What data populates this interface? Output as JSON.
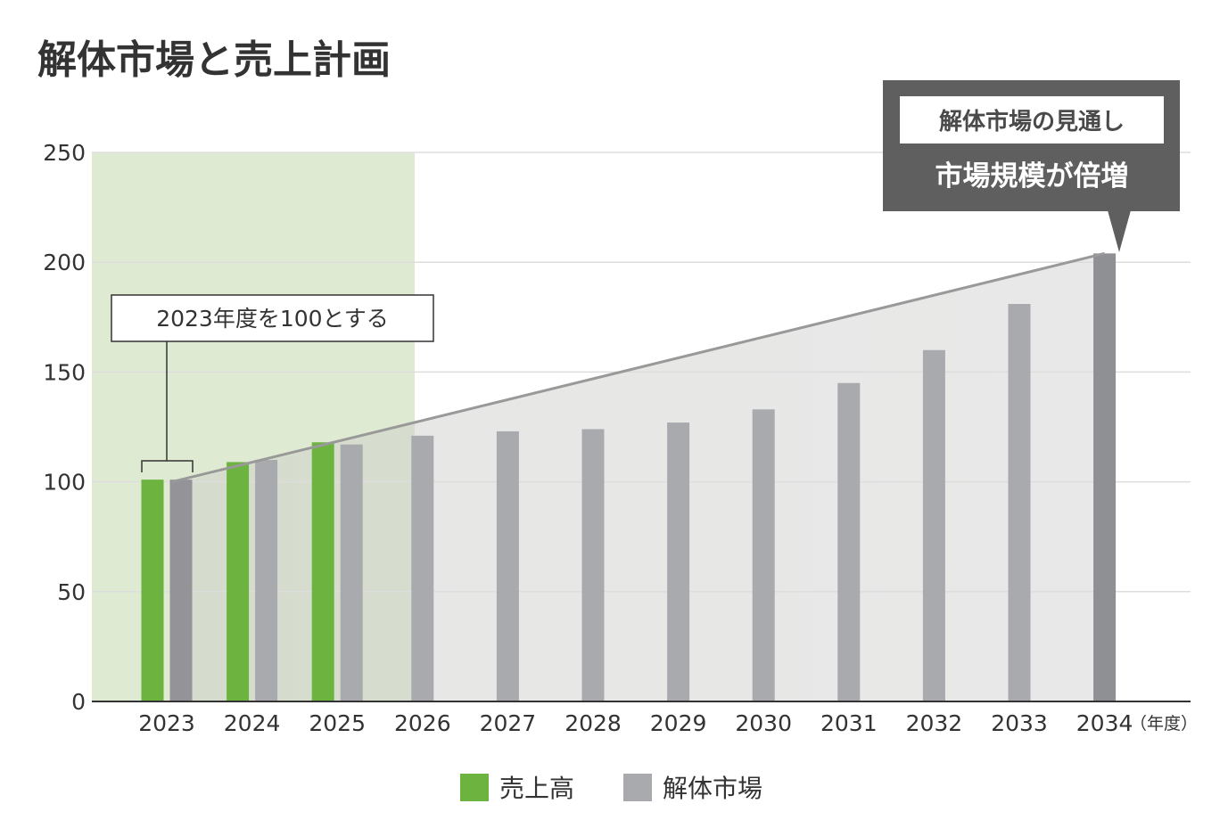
{
  "chart_data": {
    "type": "bar",
    "title": "解体市場と売上計画",
    "categories": [
      "2023",
      "2024",
      "2025",
      "2026",
      "2027",
      "2028",
      "2029",
      "2030",
      "2031",
      "2032",
      "2033",
      "2034"
    ],
    "x_unit_label": "（年度）",
    "ylim": [
      0,
      250
    ],
    "yticks": [
      0,
      50,
      100,
      150,
      200,
      250
    ],
    "grid": true,
    "series": [
      {
        "name": "売上高",
        "color": "#6db33f",
        "values": [
          101,
          109,
          118,
          null,
          null,
          null,
          null,
          null,
          null,
          null,
          null,
          null
        ]
      },
      {
        "name": "解体市場",
        "color": "#a9aaae",
        "values": [
          101,
          110,
          117,
          121,
          123,
          124,
          127,
          133,
          145,
          160,
          181,
          204
        ]
      }
    ],
    "trend_line": {
      "from": [
        "2023",
        100
      ],
      "to": [
        "2034",
        204
      ],
      "color": "#999999"
    },
    "highlight_region": {
      "categories": [
        "2023",
        "2025"
      ],
      "color": "#dfead2"
    },
    "base_year_note": "2023年度を100とする",
    "callout": {
      "subtitle": "解体市場の見通し",
      "headline": "市場規模が倍増"
    },
    "legend": {
      "position": "bottom-center",
      "items": [
        "売上高",
        "解体市場"
      ]
    },
    "colors": {
      "axis": "#333333",
      "grid": "#dddddd",
      "callout_bg": "#5f5f5f",
      "base_bar": "#939398",
      "final_bar": "#8f9094"
    }
  }
}
